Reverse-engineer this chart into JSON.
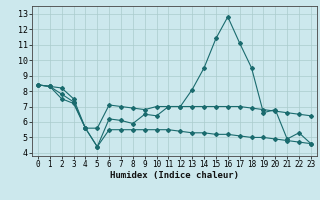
{
  "title": "",
  "xlabel": "Humidex (Indice chaleur)",
  "bg_color": "#cce8ed",
  "grid_color": "#aacccc",
  "line_color": "#1a6b6e",
  "xlim": [
    -0.5,
    23.5
  ],
  "ylim": [
    3.8,
    13.5
  ],
  "xticks": [
    0,
    1,
    2,
    3,
    4,
    5,
    6,
    7,
    8,
    9,
    10,
    11,
    12,
    13,
    14,
    15,
    16,
    17,
    18,
    19,
    20,
    21,
    22,
    23
  ],
  "yticks": [
    4,
    5,
    6,
    7,
    8,
    9,
    10,
    11,
    12,
    13
  ],
  "line1_x": [
    0,
    1,
    2,
    3,
    4,
    5,
    6,
    7,
    8,
    9,
    10,
    11,
    12,
    13,
    14,
    15,
    16,
    17,
    18,
    19,
    20,
    21,
    22,
    23
  ],
  "line1_y": [
    8.4,
    8.3,
    8.2,
    7.5,
    5.6,
    4.4,
    6.2,
    6.1,
    5.9,
    6.5,
    6.4,
    7.0,
    7.0,
    8.1,
    9.5,
    11.4,
    12.8,
    11.1,
    9.5,
    6.6,
    6.8,
    4.9,
    5.3,
    4.6
  ],
  "line2_x": [
    0,
    1,
    2,
    3,
    4,
    5,
    6,
    7,
    8,
    9,
    10,
    11,
    12,
    13,
    14,
    15,
    16,
    17,
    18,
    19,
    20,
    21,
    22,
    23
  ],
  "line2_y": [
    8.4,
    8.3,
    7.8,
    7.3,
    5.6,
    5.6,
    7.1,
    7.0,
    6.9,
    6.8,
    7.0,
    7.0,
    7.0,
    7.0,
    7.0,
    7.0,
    7.0,
    7.0,
    6.9,
    6.8,
    6.7,
    6.6,
    6.5,
    6.4
  ],
  "line3_x": [
    0,
    1,
    2,
    3,
    4,
    5,
    6,
    7,
    8,
    9,
    10,
    11,
    12,
    13,
    14,
    15,
    16,
    17,
    18,
    19,
    20,
    21,
    22,
    23
  ],
  "line3_y": [
    8.4,
    8.3,
    7.5,
    7.2,
    5.6,
    4.4,
    5.5,
    5.5,
    5.5,
    5.5,
    5.5,
    5.5,
    5.4,
    5.3,
    5.3,
    5.2,
    5.2,
    5.1,
    5.0,
    5.0,
    4.9,
    4.8,
    4.7,
    4.6
  ]
}
